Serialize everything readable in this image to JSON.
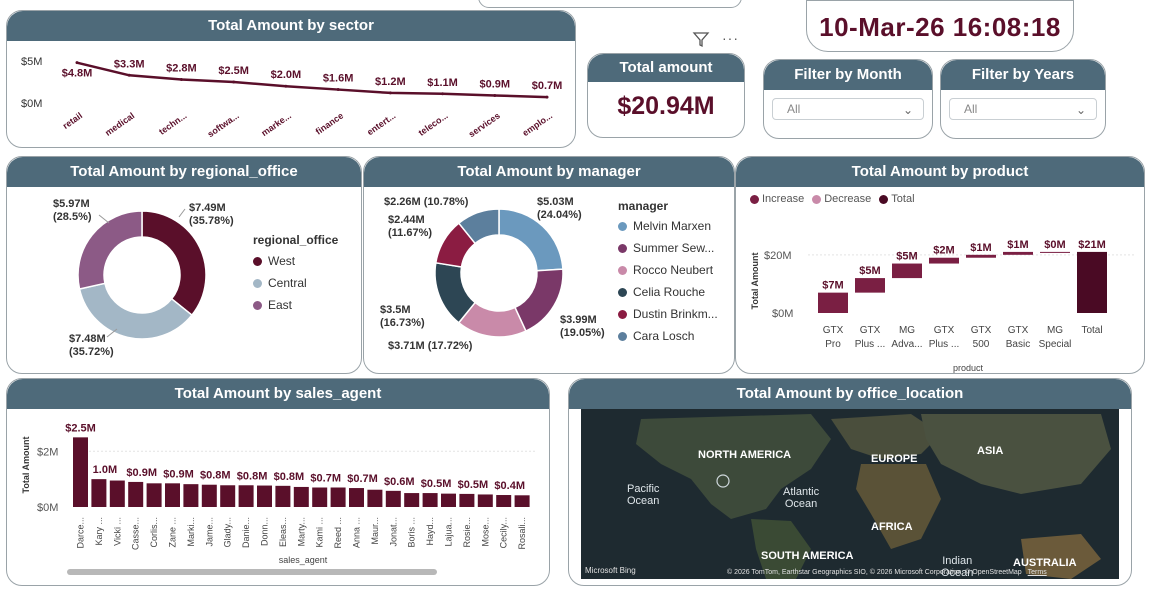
{
  "datetime": "10-Mar-26 16:08:18",
  "icons": {
    "filter": "filter-icon",
    "more": "more-options-icon"
  },
  "colors": {
    "header": "#4e6a7a",
    "maroon": "#5a0f2a",
    "light_blue": "#a3b7c6",
    "mauve": "#8c5a86",
    "blue": "#6b99be",
    "purple": "#7a3868",
    "pink": "#c98aa9",
    "dark_teal": "#2d4654",
    "crimson": "#8b1c42",
    "steel": "#5c7f9d"
  },
  "sector": {
    "title": "Total Amount by sector",
    "y_ticks": [
      "$5M",
      "$0M"
    ],
    "chart_data": {
      "type": "line",
      "categories": [
        "retail",
        "medical",
        "techn...",
        "softwa...",
        "marke...",
        "finance",
        "entert...",
        "teleco...",
        "services",
        "emplo..."
      ],
      "values": [
        4.8,
        3.3,
        2.8,
        2.5,
        2.0,
        1.6,
        1.2,
        1.1,
        0.9,
        0.7
      ],
      "labels": [
        "$4.8M",
        "$3.3M",
        "$2.8M",
        "$2.5M",
        "$2.0M",
        "$1.6M",
        "$1.2M",
        "$1.1M",
        "$0.9M",
        "$0.7M"
      ],
      "ylim": [
        0,
        5
      ]
    }
  },
  "total_card": {
    "title": "Total amount",
    "value": "$20.94M"
  },
  "filter_month": {
    "title": "Filter by Month",
    "value": "All"
  },
  "filter_years": {
    "title": "Filter by Years",
    "value": "All"
  },
  "regional": {
    "title": "Total Amount by regional_office",
    "legend_title": "regional_office",
    "chart_data": {
      "type": "pie",
      "categories": [
        "West",
        "Central",
        "East"
      ],
      "values": [
        7.49,
        7.48,
        5.97
      ],
      "labels": [
        "$7.49M\n(35.78%)",
        "$7.48M\n(35.72%)",
        "$5.97M\n(28.5%)"
      ],
      "colors": [
        "#5a0f2a",
        "#a3b7c6",
        "#8c5a86"
      ]
    }
  },
  "manager": {
    "title": "Total Amount by manager",
    "legend_title": "manager",
    "chart_data": {
      "type": "pie",
      "categories": [
        "Melvin Marxen",
        "Summer Sew...",
        "Rocco Neubert",
        "Celia Rouche",
        "Dustin Brinkm...",
        "Cara Losch"
      ],
      "values": [
        5.03,
        3.99,
        3.71,
        3.5,
        2.44,
        2.26
      ],
      "labels": [
        "$5.03M\n(24.04%)",
        "$3.99M\n(19.05%)",
        "$3.71M (17.72%)",
        "$3.5M\n(16.73%)",
        "$2.44M\n(11.67%)",
        "$2.26M (10.78%)"
      ],
      "colors": [
        "#6b99be",
        "#7a3868",
        "#c98aa9",
        "#2d4654",
        "#8b1c42",
        "#5c7f9d"
      ]
    }
  },
  "product": {
    "title": "Total Amount by product",
    "legend": [
      "Increase",
      "Decrease",
      "Total"
    ],
    "legend_colors": [
      "#7a1f43",
      "#c98aa9",
      "#4a0a24"
    ],
    "xlabel": "product",
    "ylabel": "Total Amount",
    "y_ticks": [
      "$20M",
      "$0M"
    ],
    "chart_data": {
      "type": "bar",
      "categories": [
        "GTX\nPro",
        "GTX\nPlus ...",
        "MG\nAdva...",
        "GTX\nPlus ...",
        "GTX\n500",
        "GTX\nBasic",
        "MG\nSpecial",
        "Total"
      ],
      "values": [
        7.0,
        5.0,
        5.0,
        2.0,
        1.0,
        1.0,
        0.0,
        21.0
      ],
      "labels": [
        "$7M",
        "$5M",
        "$5M",
        "$2M",
        "$1M",
        "$1M",
        "$0M",
        "$21M"
      ],
      "kind": [
        "increase",
        "increase",
        "increase",
        "increase",
        "increase",
        "increase",
        "increase",
        "total"
      ],
      "ylim": [
        0,
        22
      ]
    }
  },
  "agent": {
    "title": "Total Amount by sales_agent",
    "xlabel": "sales_agent",
    "ylabel": "Total Amount",
    "y_ticks": [
      "$2M",
      "$0M"
    ],
    "chart_data": {
      "type": "bar",
      "categories": [
        "Darce...",
        "Kary ...",
        "Vicki ...",
        "Casse...",
        "Corlis...",
        "Zane ...",
        "Marki...",
        "Jame...",
        "Glady...",
        "Danie...",
        "Donn...",
        "Eleas...",
        "Marty...",
        "Kami ...",
        "Reed ...",
        "Anna ...",
        "Maur...",
        "Jonat...",
        "Boris ...",
        "Hayd...",
        "Lajua...",
        "Rosie...",
        "Mose...",
        "Cecily...",
        "Rosali..."
      ],
      "values": [
        2.5,
        1.0,
        0.95,
        0.9,
        0.85,
        0.85,
        0.82,
        0.8,
        0.78,
        0.78,
        0.77,
        0.76,
        0.72,
        0.7,
        0.7,
        0.68,
        0.62,
        0.58,
        0.5,
        0.5,
        0.48,
        0.47,
        0.45,
        0.43,
        0.42
      ],
      "labels": [
        "$2.5M",
        "1.0M",
        "",
        "$0.9M",
        "",
        "$0.9M",
        "",
        "$0.8M",
        "",
        "$0.8M",
        "",
        "$0.8M",
        "",
        "$0.7M",
        "",
        "$0.7M",
        "",
        "$0.6M",
        "",
        "$0.5M",
        "",
        "$0.5M",
        "",
        "$0.4M",
        ""
      ],
      "ylim": [
        0,
        2.8
      ]
    }
  },
  "location": {
    "title": "Total Amount by office_location",
    "labels": {
      "na": "NORTH AMERICA",
      "eu": "EUROPE",
      "asia": "ASIA",
      "africa": "AFRICA",
      "sa": "SOUTH AMERICA",
      "aus": "AUSTRALIA",
      "pacific": "Pacific\nOcean",
      "atlantic": "Atlantic\nOcean",
      "indian": "Indian\nOcean"
    },
    "bing": "Microsoft Bing",
    "attribution": "© 2026 TomTom, Earthstar Geographics SIO, © 2026 Microsoft Corporation, © OpenStreetMap",
    "terms": "Terms"
  }
}
